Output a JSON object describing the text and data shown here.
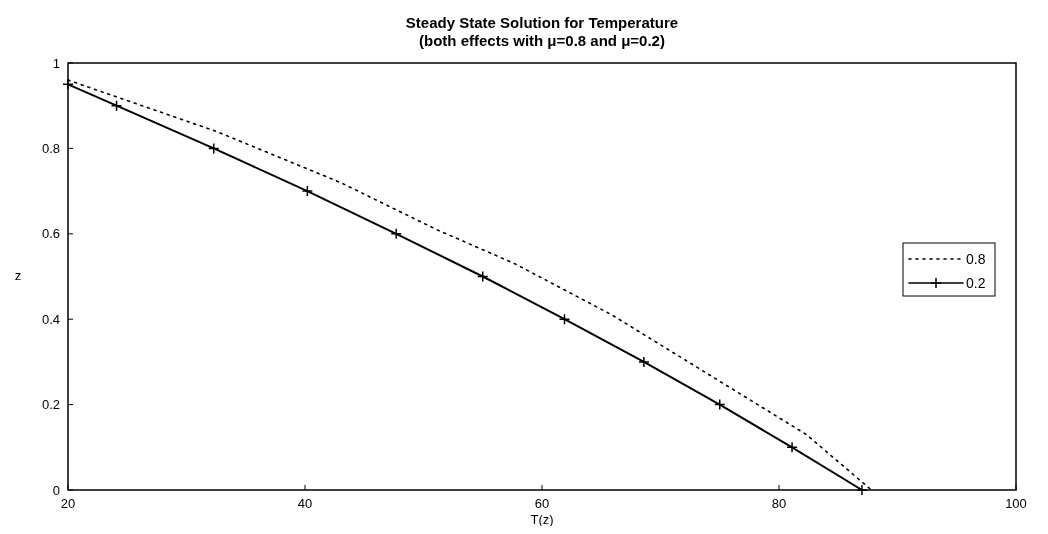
{
  "chart_data": {
    "type": "line",
    "title": "Steady State Solution for Temperature",
    "subtitle": "(both effects with μ=0.8 and μ=0.2)",
    "xlabel": "T(z)",
    "ylabel": "z",
    "xlim": [
      20,
      100
    ],
    "xticks": [
      20,
      40,
      60,
      80,
      100
    ],
    "ylim": [
      0,
      1
    ],
    "yticks": [
      0,
      0.2,
      0.4,
      0.6,
      0.8,
      1
    ],
    "grid": false,
    "legend": "right",
    "series": [
      {
        "name": "0.8",
        "color": "#000000",
        "line_style": "dotted",
        "marker": "none",
        "x": [
          20,
          32.5,
          43,
          51.1,
          57.7,
          65.9,
          74.1,
          82.3,
          87.8
        ],
        "values": [
          0.96,
          0.84,
          0.72,
          0.61,
          0.53,
          0.41,
          0.27,
          0.13,
          0
        ]
      },
      {
        "name": "0.2",
        "color": "#000000",
        "line_style": "solid",
        "marker": "cross",
        "x": [
          20,
          24.1,
          32.3,
          40.2,
          47.7,
          55,
          61.9,
          68.6,
          75,
          81.1,
          87
        ],
        "values": [
          0.95,
          0.9,
          0.8,
          0.7,
          0.6,
          0.5,
          0.4,
          0.3,
          0.2,
          0.1,
          0
        ]
      }
    ]
  }
}
